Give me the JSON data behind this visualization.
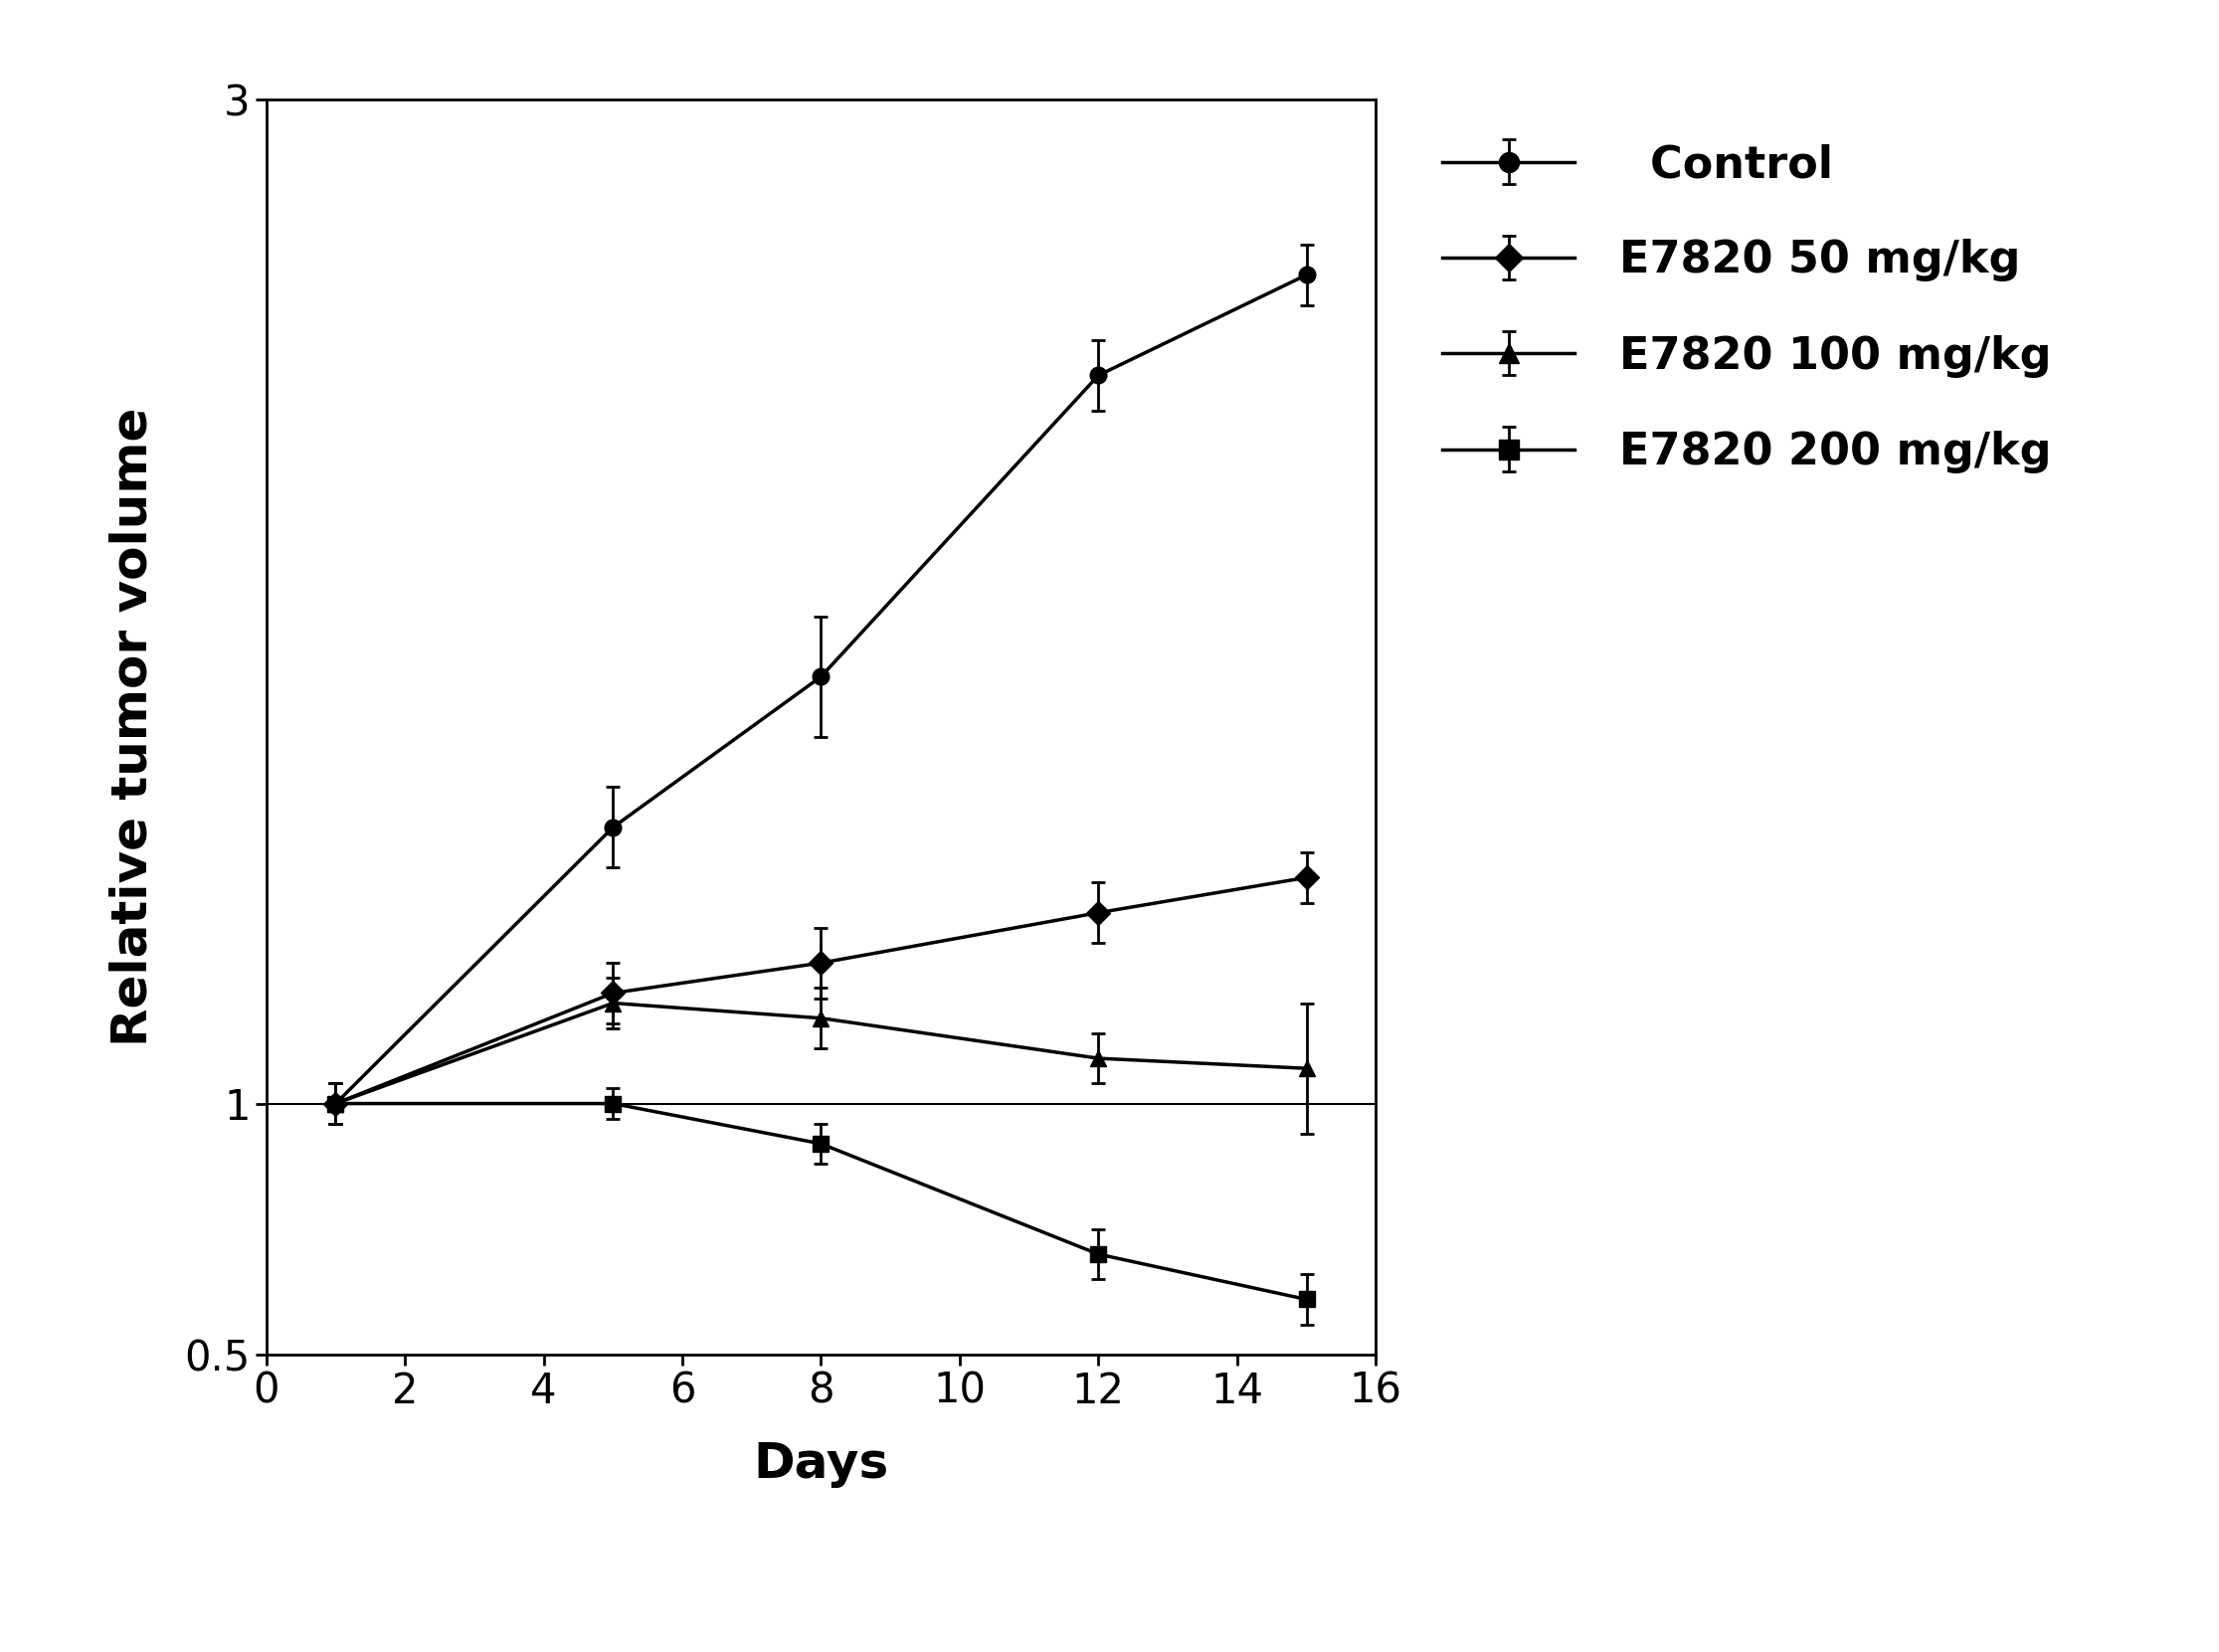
{
  "x": [
    1,
    5,
    8,
    12,
    15
  ],
  "control": {
    "y": [
      1.0,
      1.55,
      1.85,
      2.45,
      2.65
    ],
    "yerr": [
      0.04,
      0.08,
      0.12,
      0.07,
      0.06
    ],
    "label": "  Control",
    "marker": "o",
    "color": "#000000"
  },
  "e50": {
    "y": [
      1.0,
      1.22,
      1.28,
      1.38,
      1.45
    ],
    "yerr": [
      0.04,
      0.06,
      0.07,
      0.06,
      0.05
    ],
    "label": "E7820 50 mg/kg",
    "marker": "D",
    "color": "#000000"
  },
  "e100": {
    "y": [
      1.0,
      1.2,
      1.17,
      1.09,
      1.07
    ],
    "yerr": [
      0.04,
      0.05,
      0.06,
      0.05,
      0.13
    ],
    "label": "E7820 100 mg/kg",
    "marker": "^",
    "color": "#000000"
  },
  "e200": {
    "y": [
      1.0,
      1.0,
      0.92,
      0.7,
      0.61
    ],
    "yerr": [
      0.04,
      0.03,
      0.04,
      0.05,
      0.05
    ],
    "label": "E7820 200 mg/kg",
    "marker": "s",
    "color": "#000000"
  },
  "xlim": [
    0,
    16
  ],
  "ylim": [
    0.5,
    3.0
  ],
  "xticks": [
    0,
    2,
    4,
    6,
    8,
    10,
    12,
    14,
    16
  ],
  "yticks": [
    0.5,
    1.0,
    3.0
  ],
  "ytick_labels": [
    "0.5",
    "1",
    "3"
  ],
  "xlabel": "Days",
  "ylabel": "Relative tumor volume",
  "hline_y": 1.0,
  "line_width": 2.5,
  "marker_size": 12,
  "elinewidth": 2.0,
  "capsize": 5
}
